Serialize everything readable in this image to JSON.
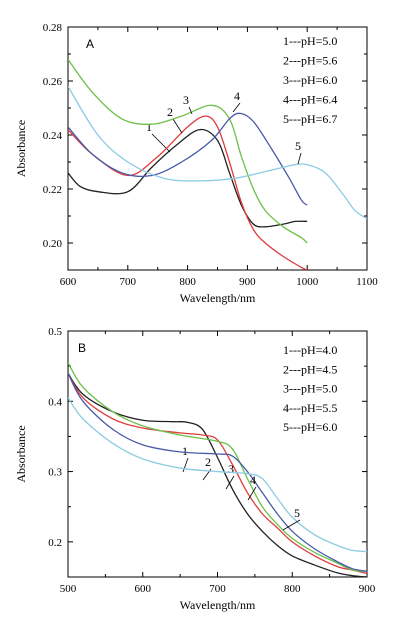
{
  "chart_data": [
    {
      "type": "line",
      "panel": "A",
      "xlabel": "Wavelength/nm",
      "ylabel": "Absorbance",
      "xlim": [
        600,
        1100
      ],
      "ylim": [
        0.19,
        0.28
      ],
      "xticks": [
        600,
        700,
        800,
        900,
        1000,
        1100
      ],
      "yticks": [
        0.2,
        0.22,
        0.24,
        0.26,
        0.28
      ],
      "ytick_labels": [
        "0.20",
        "0.22",
        "0.24",
        "0.26",
        "0.28"
      ],
      "legend_position": "top-right",
      "legend": [
        "1---pH=5.0",
        "2---pH=5.6",
        "3---pH=6.0",
        "4---pH=6.4",
        "5---pH=6.7"
      ],
      "series": [
        {
          "label": "1",
          "color": "#222222",
          "points": [
            [
              600,
              0.226
            ],
            [
              620,
              0.221
            ],
            [
              650,
              0.219
            ],
            [
              700,
              0.219
            ],
            [
              740,
              0.228
            ],
            [
              780,
              0.236
            ],
            [
              820,
              0.242
            ],
            [
              850,
              0.238
            ],
            [
              870,
              0.226
            ],
            [
              890,
              0.214
            ],
            [
              910,
              0.207
            ],
            [
              930,
              0.206
            ],
            [
              960,
              0.207
            ],
            [
              980,
              0.208
            ],
            [
              1000,
              0.208
            ]
          ]
        },
        {
          "label": "2",
          "color": "#e03c3c",
          "points": [
            [
              600,
              0.242
            ],
            [
              640,
              0.233
            ],
            [
              700,
              0.225
            ],
            [
              750,
              0.232
            ],
            [
              800,
              0.243
            ],
            [
              830,
              0.247
            ],
            [
              850,
              0.243
            ],
            [
              870,
              0.23
            ],
            [
              890,
              0.215
            ],
            [
              910,
              0.205
            ],
            [
              930,
              0.2
            ],
            [
              960,
              0.195
            ],
            [
              990,
              0.191
            ],
            [
              1000,
              0.19
            ]
          ]
        },
        {
          "label": "3",
          "color": "#6cc04a",
          "points": [
            [
              600,
              0.268
            ],
            [
              640,
              0.256
            ],
            [
              690,
              0.246
            ],
            [
              740,
              0.244
            ],
            [
              790,
              0.247
            ],
            [
              840,
              0.251
            ],
            [
              870,
              0.246
            ],
            [
              890,
              0.232
            ],
            [
              910,
              0.22
            ],
            [
              930,
              0.212
            ],
            [
              960,
              0.206
            ],
            [
              990,
              0.202
            ],
            [
              1000,
              0.2
            ]
          ]
        },
        {
          "label": "4",
          "color": "#4a5aa8",
          "points": [
            [
              600,
              0.243
            ],
            [
              640,
              0.233
            ],
            [
              690,
              0.226
            ],
            [
              740,
              0.225
            ],
            [
              790,
              0.23
            ],
            [
              840,
              0.238
            ],
            [
              870,
              0.246
            ],
            [
              888,
              0.248
            ],
            [
              910,
              0.245
            ],
            [
              940,
              0.235
            ],
            [
              970,
              0.224
            ],
            [
              990,
              0.216
            ],
            [
              1000,
              0.214
            ]
          ]
        },
        {
          "label": "5",
          "color": "#8ccbe3",
          "points": [
            [
              600,
              0.258
            ],
            [
              650,
              0.24
            ],
            [
              700,
              0.23
            ],
            [
              760,
              0.224
            ],
            [
              820,
              0.223
            ],
            [
              880,
              0.224
            ],
            [
              940,
              0.227
            ],
            [
              980,
              0.229
            ],
            [
              1000,
              0.229
            ],
            [
              1030,
              0.226
            ],
            [
              1060,
              0.218
            ],
            [
              1080,
              0.212
            ],
            [
              1100,
              0.209
            ]
          ]
        }
      ]
    },
    {
      "type": "line",
      "panel": "B",
      "xlabel": "Wavelength/nm",
      "ylabel": "Absorbance",
      "xlim": [
        500,
        900
      ],
      "ylim": [
        0.15,
        0.5
      ],
      "xticks": [
        500,
        600,
        700,
        800,
        900
      ],
      "yticks": [
        0.2,
        0.3,
        0.4,
        0.5
      ],
      "ytick_labels": [
        "0.2",
        "0.3",
        "0.4",
        "0.5"
      ],
      "legend_position": "top-right",
      "legend": [
        "1---pH=4.0",
        "2---pH=4.5",
        "3---pH=5.0",
        "4---pH=5.5",
        "5---pH=6.0"
      ],
      "series": [
        {
          "label": "1",
          "color": "#222222",
          "points": [
            [
              500,
              0.44
            ],
            [
              520,
              0.41
            ],
            [
              560,
              0.385
            ],
            [
              600,
              0.373
            ],
            [
              640,
              0.371
            ],
            [
              660,
              0.37
            ],
            [
              680,
              0.36
            ],
            [
              700,
              0.32
            ],
            [
              720,
              0.275
            ],
            [
              740,
              0.24
            ],
            [
              760,
              0.215
            ],
            [
              780,
              0.195
            ],
            [
              800,
              0.18
            ],
            [
              830,
              0.167
            ],
            [
              860,
              0.156
            ],
            [
              880,
              0.152
            ],
            [
              900,
              0.15
            ]
          ]
        },
        {
          "label": "2",
          "color": "#e03c3c",
          "points": [
            [
              500,
              0.44
            ],
            [
              520,
              0.405
            ],
            [
              560,
              0.375
            ],
            [
              600,
              0.362
            ],
            [
              650,
              0.355
            ],
            [
              680,
              0.352
            ],
            [
              700,
              0.345
            ],
            [
              720,
              0.31
            ],
            [
              740,
              0.27
            ],
            [
              760,
              0.24
            ],
            [
              780,
              0.22
            ],
            [
              800,
              0.2
            ],
            [
              830,
              0.18
            ],
            [
              860,
              0.165
            ],
            [
              880,
              0.16
            ],
            [
              900,
              0.155
            ]
          ]
        },
        {
          "label": "3",
          "color": "#6cc04a",
          "points": [
            [
              500,
              0.455
            ],
            [
              520,
              0.42
            ],
            [
              560,
              0.385
            ],
            [
              600,
              0.365
            ],
            [
              650,
              0.352
            ],
            [
              700,
              0.343
            ],
            [
              720,
              0.332
            ],
            [
              740,
              0.29
            ],
            [
              760,
              0.25
            ],
            [
              780,
              0.225
            ],
            [
              800,
              0.205
            ],
            [
              830,
              0.185
            ],
            [
              860,
              0.17
            ],
            [
              880,
              0.16
            ],
            [
              900,
              0.158
            ]
          ]
        },
        {
          "label": "4",
          "color": "#4a5aa8",
          "points": [
            [
              500,
              0.44
            ],
            [
              520,
              0.4
            ],
            [
              560,
              0.36
            ],
            [
              600,
              0.338
            ],
            [
              650,
              0.328
            ],
            [
              700,
              0.325
            ],
            [
              720,
              0.322
            ],
            [
              740,
              0.3
            ],
            [
              760,
              0.27
            ],
            [
              780,
              0.24
            ],
            [
              800,
              0.215
            ],
            [
              830,
              0.19
            ],
            [
              860,
              0.172
            ],
            [
              880,
              0.162
            ],
            [
              900,
              0.158
            ]
          ]
        },
        {
          "label": "5",
          "color": "#8ccbe3",
          "points": [
            [
              500,
              0.405
            ],
            [
              520,
              0.375
            ],
            [
              560,
              0.34
            ],
            [
              600,
              0.318
            ],
            [
              650,
              0.305
            ],
            [
              700,
              0.3
            ],
            [
              740,
              0.297
            ],
            [
              760,
              0.29
            ],
            [
              780,
              0.262
            ],
            [
              800,
              0.235
            ],
            [
              830,
              0.21
            ],
            [
              860,
              0.195
            ],
            [
              880,
              0.188
            ],
            [
              900,
              0.186
            ]
          ]
        }
      ]
    }
  ]
}
